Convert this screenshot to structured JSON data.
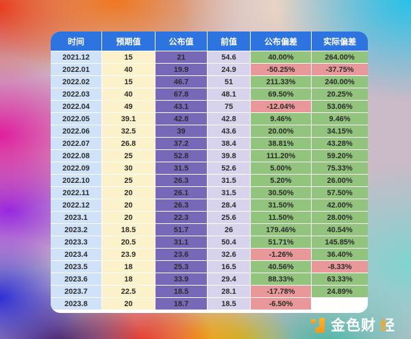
{
  "chart_data": {
    "type": "table",
    "columns": [
      "时间",
      "预期值",
      "公布值",
      "前值",
      "公布偏差",
      "实际偏差"
    ],
    "rows": [
      [
        "2021.12",
        "15",
        "21",
        "54.6",
        "40.00%",
        "264.00%"
      ],
      [
        "2022.01",
        "40",
        "19.9",
        "24.9",
        "-50.25%",
        "-37.75%"
      ],
      [
        "2022.02",
        "15",
        "46.7",
        "51",
        "211.33%",
        "240.00%"
      ],
      [
        "2022.03",
        "40",
        "67.8",
        "48.1",
        "69.50%",
        "20.25%"
      ],
      [
        "2022.04",
        "49",
        "43.1",
        "75",
        "-12.04%",
        "53.06%"
      ],
      [
        "2022.05",
        "39.1",
        "42.8",
        "42.8",
        "9.46%",
        "9.46%"
      ],
      [
        "2022.06",
        "32.5",
        "39",
        "43.6",
        "20.00%",
        "34.15%"
      ],
      [
        "2022.07",
        "26.8",
        "37.2",
        "38.4",
        "38.81%",
        "43.28%"
      ],
      [
        "2022.08",
        "25",
        "52.8",
        "39.8",
        "111.20%",
        "59.20%"
      ],
      [
        "2022.09",
        "30",
        "31.5",
        "52.6",
        "5.00%",
        "75.33%"
      ],
      [
        "2022.10",
        "25",
        "26.3",
        "31.5",
        "5.20%",
        "26.00%"
      ],
      [
        "2022.11",
        "20",
        "26.1",
        "31.5",
        "30.50%",
        "57.50%"
      ],
      [
        "2022.12",
        "20",
        "26.3",
        "28.4",
        "31.50%",
        "42.00%"
      ],
      [
        "2023.1",
        "20",
        "22.3",
        "25.6",
        "11.50%",
        "28.00%"
      ],
      [
        "2023.2",
        "18.5",
        "51.7",
        "26",
        "179.46%",
        "40.54%"
      ],
      [
        "2023.3",
        "20.5",
        "31.1",
        "50.4",
        "51.71%",
        "145.85%"
      ],
      [
        "2023.4",
        "23.9",
        "23.6",
        "32.6",
        "-1.26%",
        "36.40%"
      ],
      [
        "2023.5",
        "18",
        "25.3",
        "16.5",
        "40.56%",
        "-8.33%"
      ],
      [
        "2023.6",
        "18",
        "33.9",
        "29.4",
        "88.33%",
        "63.33%"
      ],
      [
        "2023.7",
        "22.5",
        "18.5",
        "28.1",
        "-17.78%",
        "24.89%"
      ],
      [
        "2023.8",
        "20",
        "18.7",
        "18.5",
        "-6.50%",
        ""
      ]
    ]
  },
  "watermark": {
    "brand_main": "金色财",
    "brand_accent": "经"
  },
  "colors": {
    "header-blue": "#2d74e0",
    "col-time": "#cfe2f7",
    "col-expected": "#fbf2cb",
    "col-published": "#7768b8",
    "col-previous": "#d8d3ec",
    "dev-positive": "#93c47d",
    "dev-negative": "#e89899",
    "brand-gold": "#f5a623"
  }
}
